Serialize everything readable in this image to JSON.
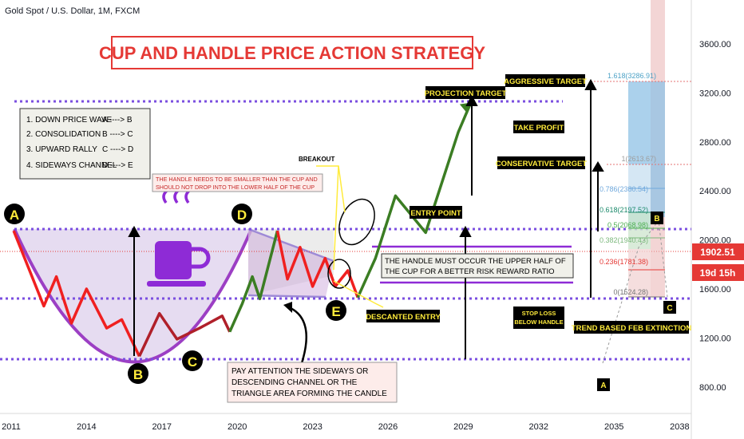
{
  "symbol_header": "Gold Spot / U.S. Dollar, 1M, FXCM",
  "title": "CUP AND HANDLE PRICE ACTION STRATEGY",
  "legend": [
    {
      "step": "1. DOWN PRICE WAVE",
      "range": "A ----> B"
    },
    {
      "step": "2. CONSOLIDATION",
      "range": "B ----> C"
    },
    {
      "step": "3. UPWARD RALLY",
      "range": "C ----> D"
    },
    {
      "step": "4. SIDEWAYS CHANNEL",
      "range": "D ----> E"
    }
  ],
  "notes": {
    "handle_smaller": "THE HANDLE NEEDS TO BE SMALLER THAN THE CUP AND SHOULD NOT DROP INTO THE LOWER HALF OF THE CUP",
    "breakout": "BREAKOUT",
    "entry_point": "ENTRY POINT",
    "projection_target": "PROJECTION TARGET",
    "handle_upper_half": "THE HANDLE MUST OCCUR THE UPPER HALF OF THE CUP FOR A BETTER RISK REWARD RATIO",
    "descanted_entry": "DESCANTED ENTRY",
    "pay_attention": "PAY ATTENTION THE SIDEWAYS OR DESCENDING CHANNEL OR THE TRIANGLE AREA FORMING THE CANDLE",
    "aggressive_target": "AGGRESSIVE TARGET",
    "take_profit": "TAKE PROFIT",
    "conservative_target": "CONSERVATIVE TARGET",
    "stop_loss": "STOP LOSS BELOW HANDLE",
    "fib_extension": "TREND BASED FEB EXTINCTION"
  },
  "point_labels": [
    "A",
    "B",
    "C",
    "D",
    "E"
  ],
  "small_labels": {
    "b": "B",
    "c": "C",
    "a": "A"
  },
  "price_badge": "1902.51",
  "countdown_badge": "19d 15h",
  "fib_levels": [
    {
      "label": "1.618(3286.91)",
      "color": "#4fa3c7"
    },
    {
      "label": "1(2613.67)",
      "color": "#9e9e9e"
    },
    {
      "label": "0.786(2380.54)",
      "color": "#6fa8dc"
    },
    {
      "label": "0.618(2197.52)",
      "color": "#1b8a6b"
    },
    {
      "label": "0.5(2068.98)",
      "color": "#4caf50"
    },
    {
      "label": "0.382(1940.43)",
      "color": "#7cb87c"
    },
    {
      "label": "0.236(1781.38)",
      "color": "#e53935"
    },
    {
      "label": "0(1524.28)",
      "color": "#757575"
    }
  ],
  "colors": {
    "down": "#f02020",
    "consolidation": "#b0202a",
    "up": "#3b7d23",
    "cup": "#9c3fc4",
    "dotted": "#7b4fe0",
    "yellow": "#ffeb3b",
    "price_badge": "#e53935"
  },
  "chart_data": {
    "type": "line",
    "title": "CUP AND HANDLE PRICE ACTION STRATEGY",
    "x_tick_labels": [
      "2011",
      "2014",
      "2017",
      "2020",
      "2023",
      "2026",
      "2029",
      "2032",
      "2035",
      "2038"
    ],
    "y_tick_labels": [
      "800.00",
      "1200.00",
      "1600.00",
      "2000.00",
      "2400.00",
      "2800.00",
      "3200.00",
      "3600.00"
    ],
    "ylim": [
      600,
      3950
    ],
    "xlim": [
      2011,
      2038
    ],
    "reference_levels": {
      "rim_resistance": 2075,
      "handle_low": 1530,
      "cup_bottom": 1050,
      "projection_top": 3120
    },
    "series": [
      {
        "name": "Down price wave",
        "color": "#f02020",
        "points": [
          [
            2011.1,
            2075
          ],
          [
            2012.3,
            1460
          ],
          [
            2012.8,
            1700
          ],
          [
            2013.4,
            1320
          ],
          [
            2014.0,
            1600
          ],
          [
            2014.8,
            1280
          ],
          [
            2015.4,
            1350
          ],
          [
            2016.1,
            1050
          ]
        ]
      },
      {
        "name": "Consolidation",
        "color": "#b0202a",
        "points": [
          [
            2016.1,
            1050
          ],
          [
            2016.9,
            1400
          ],
          [
            2017.6,
            1190
          ],
          [
            2018.5,
            1280
          ],
          [
            2019.4,
            1380
          ],
          [
            2019.7,
            1250
          ]
        ]
      },
      {
        "name": "Upward rally",
        "color": "#3b7d23",
        "points": [
          [
            2019.7,
            1250
          ],
          [
            2020.2,
            1480
          ],
          [
            2020.6,
            1700
          ],
          [
            2020.9,
            1520
          ],
          [
            2021.6,
            2075
          ]
        ]
      },
      {
        "name": "Handle",
        "color": "#f02020",
        "points": [
          [
            2021.6,
            2075
          ],
          [
            2022.0,
            1680
          ],
          [
            2022.5,
            1940
          ],
          [
            2023.0,
            1620
          ],
          [
            2023.5,
            1850
          ],
          [
            2023.9,
            1620
          ],
          [
            2024.4,
            1750
          ],
          [
            2024.8,
            1530
          ]
        ]
      },
      {
        "name": "Breakout",
        "color": "#3b7d23",
        "points": [
          [
            2024.8,
            1530
          ],
          [
            2025.5,
            1850
          ],
          [
            2026.3,
            2360
          ],
          [
            2027.5,
            2060
          ],
          [
            2028.8,
            2880
          ],
          [
            2029.3,
            3120
          ]
        ]
      }
    ]
  }
}
